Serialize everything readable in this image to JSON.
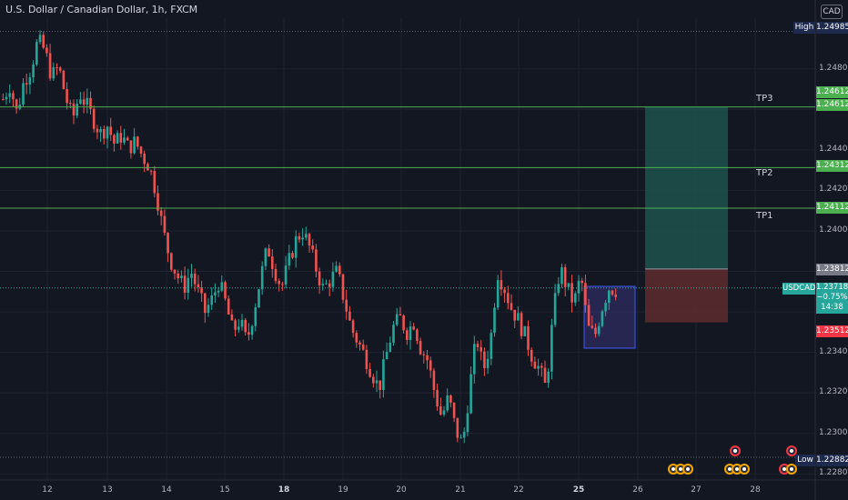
{
  "header": {
    "title": "U.S. Dollar / Canadian Dollar, 1h, FXCM",
    "currency": "CAD"
  },
  "price_axis": {
    "ticks": [
      "1.24800",
      "1.24600",
      "1.24400",
      "1.24200",
      "1.24000",
      "1.23800",
      "1.23600",
      "1.23400",
      "1.23200",
      "1.23000",
      "1.22800"
    ],
    "tick_values": [
      1.248,
      1.246,
      1.244,
      1.242,
      1.24,
      1.238,
      1.236,
      1.234,
      1.232,
      1.23,
      1.228
    ],
    "range": [
      1.2277,
      1.2505
    ]
  },
  "time_axis": {
    "labels": [
      "12",
      "13",
      "14",
      "15",
      "18",
      "19",
      "20",
      "21",
      "22",
      "25",
      "26",
      "27",
      "28"
    ],
    "bold": [
      "18",
      "25"
    ]
  },
  "levels": {
    "high": {
      "label": "High",
      "value": "1.24985"
    },
    "low": {
      "label": "Low",
      "value": "1.22882"
    },
    "tp3": {
      "label": "TP3",
      "value": "1.24612"
    },
    "tp2": {
      "label": "TP2",
      "value": "1.24312"
    },
    "tp1": {
      "label": "TP1",
      "value": "1.24112"
    },
    "entry": {
      "value": "1.23812"
    },
    "stop": {
      "value": "1.23512"
    }
  },
  "symbol": {
    "name": "USDCAD",
    "price": "1.23718",
    "change": "−0.75%",
    "countdown": "14:38"
  },
  "colors": {
    "background": "#131722",
    "bull": "#26a69a",
    "bear": "#ef5350",
    "tp_line": "#4caf50",
    "target_zone": "#1e4f4a",
    "stop_zone": "#5b2a2e",
    "range_box": "#3f3a8c"
  },
  "chart_data": {
    "type": "candlestick",
    "symbol": "USDCAD",
    "timeframe": "1h",
    "title": "U.S. Dollar / Canadian Dollar, 1h, FXCM",
    "ylim": [
      1.2277,
      1.2505
    ],
    "x_labels": [
      "12",
      "13",
      "14",
      "15",
      "18",
      "19",
      "20",
      "21",
      "22",
      "25",
      "26",
      "27",
      "28"
    ],
    "close_path": [
      1.2465,
      1.2472,
      1.2458,
      1.2474,
      1.248,
      1.2494,
      1.2489,
      1.2476,
      1.2481,
      1.2466,
      1.2455,
      1.2468,
      1.2462,
      1.2455,
      1.2448,
      1.2452,
      1.2443,
      1.2447,
      1.2441,
      1.2444,
      1.2437,
      1.2432,
      1.2419,
      1.24,
      1.2386,
      1.2378,
      1.2372,
      1.238,
      1.237,
      1.236,
      1.2366,
      1.2375,
      1.2364,
      1.235,
      1.2356,
      1.2345,
      1.236,
      1.2377,
      1.2392,
      1.2381,
      1.2372,
      1.2384,
      1.2395,
      1.24,
      1.2392,
      1.2381,
      1.2371,
      1.2376,
      1.238,
      1.2366,
      1.2352,
      1.2345,
      1.2338,
      1.233,
      1.2322,
      1.2338,
      1.2352,
      1.2357,
      1.235,
      1.2355,
      1.2342,
      1.2336,
      1.232,
      1.2308,
      1.2318,
      1.2302,
      1.2294,
      1.2322,
      1.2348,
      1.2331,
      1.2345,
      1.238,
      1.2372,
      1.2362,
      1.2356,
      1.2348,
      1.2338,
      1.2332,
      1.2322,
      1.2358,
      1.2382,
      1.2372,
      1.2364,
      1.2378,
      1.2352,
      1.2348,
      1.2362,
      1.2372,
      1.2371
    ]
  }
}
